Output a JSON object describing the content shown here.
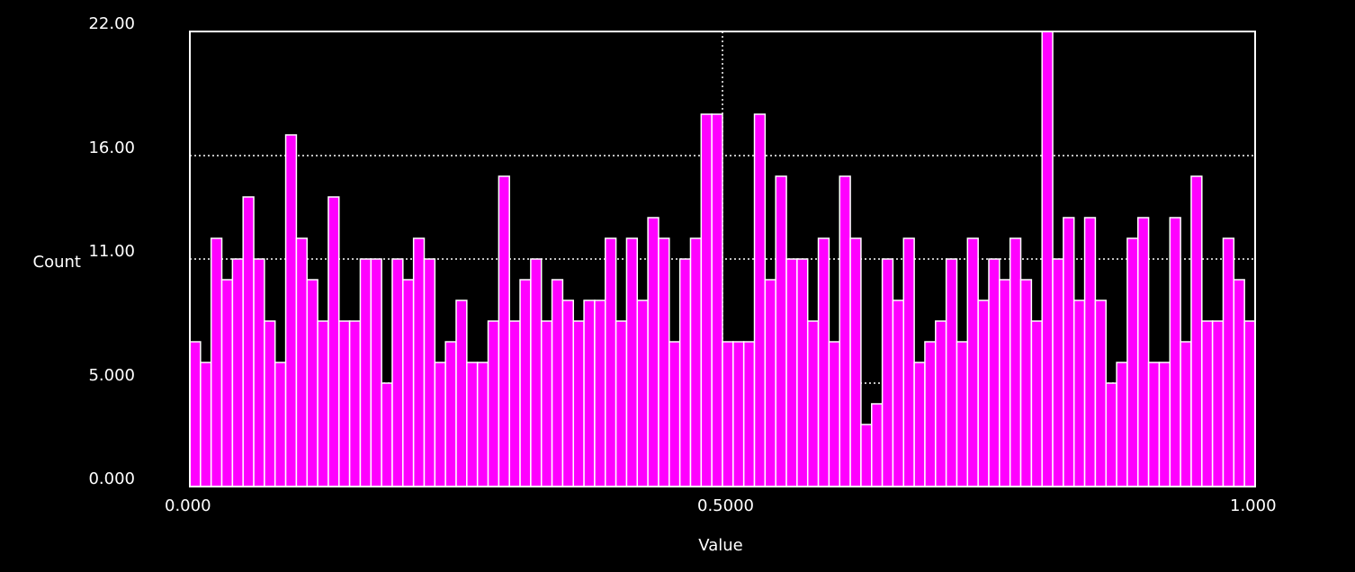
{
  "colors": {
    "background": "#000000",
    "bar": "#ff00ff",
    "bar_outline": "#ffffff",
    "axes": "#ffffff",
    "grid": "#ffffff"
  },
  "chart_data": {
    "type": "bar",
    "title": "",
    "xlabel": "Value",
    "ylabel": "Count",
    "xlim": [
      0.0,
      1.0
    ],
    "ylim": [
      0.0,
      22.0
    ],
    "x_ticks": [
      "0.000",
      "0.5000",
      "1.000"
    ],
    "y_ticks": [
      "0.000",
      "5.000",
      "11.00",
      "16.00",
      "22.00"
    ],
    "grid": "dotted",
    "bin_count": 100,
    "values": [
      7,
      6,
      12,
      10,
      11,
      14,
      11,
      8,
      6,
      17,
      12,
      10,
      8,
      14,
      8,
      8,
      11,
      11,
      5,
      11,
      10,
      12,
      11,
      6,
      7,
      9,
      6,
      6,
      8,
      15,
      8,
      10,
      11,
      8,
      10,
      9,
      8,
      9,
      9,
      12,
      8,
      12,
      9,
      13,
      12,
      7,
      11,
      12,
      18,
      18,
      7,
      7,
      7,
      18,
      10,
      15,
      11,
      11,
      8,
      12,
      7,
      15,
      12,
      3,
      4,
      11,
      9,
      12,
      6,
      7,
      8,
      11,
      7,
      12,
      9,
      11,
      10,
      12,
      10,
      8,
      22,
      11,
      13,
      9,
      13,
      9,
      5,
      6,
      12,
      13,
      6,
      6,
      13,
      7,
      15,
      8,
      8,
      12,
      10,
      8
    ]
  }
}
